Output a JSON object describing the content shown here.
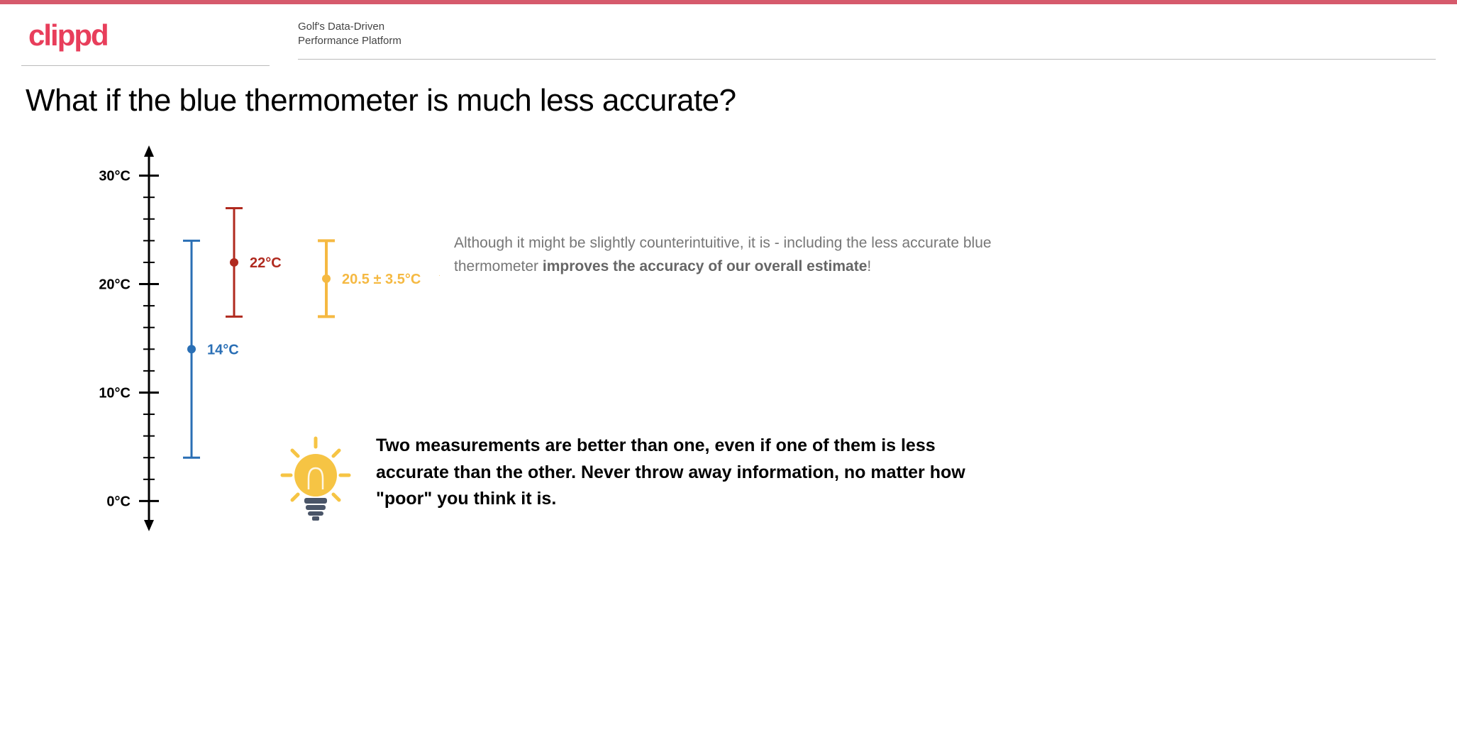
{
  "brand": {
    "text": "clippd",
    "color": "#e83e5b"
  },
  "tagline_line1": "Golf's Data-Driven",
  "tagline_line2": "Performance Platform",
  "topbar_color": "#d65a6c",
  "title": "What if the blue thermometer is much less accurate?",
  "chart": {
    "axis_color": "#000000",
    "y_min": -2,
    "y_max": 32,
    "ticks_major": [
      {
        "value": 0,
        "label": "0°C"
      },
      {
        "value": 10,
        "label": "10°C"
      },
      {
        "value": 20,
        "label": "20°C"
      },
      {
        "value": 30,
        "label": "30°C"
      }
    ],
    "minor_tick_step": 2,
    "series": [
      {
        "id": "blue",
        "value": 14,
        "error": 10,
        "color": "#2a6fb5",
        "label": "14°C",
        "x_offset": 60,
        "line_width": 3
      },
      {
        "id": "red",
        "value": 22,
        "error": 5,
        "color": "#b02a1f",
        "label": "22°C",
        "x_offset": 120,
        "line_width": 3
      },
      {
        "id": "yellow",
        "value": 20.5,
        "error": 3.5,
        "color": "#f5b942",
        "label": "20.5 ± 3.5°C",
        "x_offset": 250,
        "line_width": 4,
        "star": true
      }
    ]
  },
  "explain_pre": "Although it might be slightly counterintuitive, it is - including the less accurate blue thermometer ",
  "explain_bold": "improves the accuracy of our overall estimate",
  "explain_post": "!",
  "explain_color": "#777777",
  "takeaway": "Two measurements are better than one, even if one of them is less accurate than the other. Never throw away information, no matter how \"poor\" you think it is.",
  "bulb_color": "#f6c444",
  "bulb_base_color": "#4a5568",
  "star_color": "#f5b942"
}
